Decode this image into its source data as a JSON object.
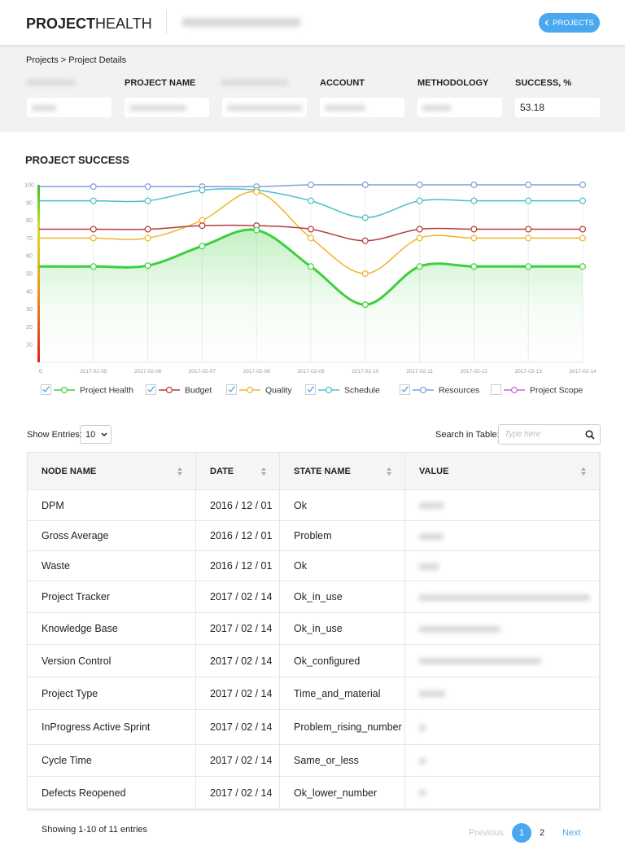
{
  "header": {
    "logo_bold": "PROJECT",
    "logo_light": "HEALTH",
    "button": "PROJECTS"
  },
  "breadcrumb": "Projects > Project Details",
  "fields": [
    {
      "label": "PROJECT NAME"
    },
    {
      "label": "ACCOUNT"
    },
    {
      "label": "METHODOLOGY"
    },
    {
      "label": "SUCCESS, %",
      "value": "53.18"
    }
  ],
  "chart_data": {
    "type": "line",
    "title": "PROJECT SUCCESS",
    "categories": [
      null,
      "2017-02-05",
      "2017-02-06",
      "2017-02-07",
      "2017-02-08",
      "2017-02-09",
      "2017-02-10",
      "2017-02-11",
      "2017-02-12",
      "2017-02-13",
      "2017-02-14"
    ],
    "ylim": [
      0,
      100
    ],
    "yticks": [
      0,
      10,
      20,
      30,
      40,
      50,
      60,
      70,
      80,
      90,
      100
    ],
    "grid": "x",
    "series": [
      {
        "name": "Project Health",
        "color": "#3ecf3e",
        "checked": true,
        "area": true,
        "values": [
          54,
          54,
          54.5,
          65.5,
          74.5,
          54,
          32.5,
          54,
          54,
          54,
          54
        ]
      },
      {
        "name": "Budget",
        "color": "#b23b3b",
        "checked": true,
        "values": [
          75,
          75,
          75,
          77,
          77,
          75,
          68.5,
          75,
          75,
          75,
          75
        ]
      },
      {
        "name": "Quality",
        "color": "#f0b429",
        "checked": true,
        "values": [
          70,
          70,
          70,
          80,
          96,
          70,
          50,
          70,
          70,
          70,
          70
        ]
      },
      {
        "name": "Schedule",
        "color": "#4bbfc6",
        "checked": true,
        "values": [
          91,
          91,
          91,
          97,
          97,
          91,
          81.5,
          91,
          91,
          91,
          91
        ]
      },
      {
        "name": "Resources",
        "color": "#7f9fd9",
        "checked": true,
        "values": [
          99,
          99,
          99,
          99,
          99,
          100,
          100,
          100,
          100,
          100,
          100
        ]
      },
      {
        "name": "Project Scope",
        "color": "#c069d6",
        "checked": false,
        "values": [
          null,
          null,
          null,
          null,
          null,
          null,
          null,
          null,
          null,
          null,
          null
        ]
      }
    ]
  },
  "table": {
    "show": "Show Entries:",
    "entries": "10",
    "search": "Search in Table:",
    "placeholder": "Type here",
    "columns": [
      "NODE NAME",
      "DATE",
      "STATE NAME",
      "VALUE"
    ],
    "rows": [
      [
        "DPM",
        "2016 / 12 / 01",
        "Ok"
      ],
      [
        "Gross Average",
        "2016 / 12 / 01",
        "Problem"
      ],
      [
        "Waste",
        "2016 / 12 / 01",
        "Ok"
      ],
      [
        "Project Tracker",
        "2017 / 02 / 14",
        "Ok_in_use"
      ],
      [
        "Knowledge Base",
        "2017 / 02 / 14",
        "Ok_in_use"
      ],
      [
        "Version Control",
        "2017 / 02 / 14",
        "Ok_configured"
      ],
      [
        "Project Type",
        "2017 / 02 / 14",
        "Time_and_material"
      ],
      [
        "InProgress Active Sprint",
        "2017 / 02 / 14",
        "Problem_rising_number"
      ],
      [
        "Cycle Time",
        "2017 / 02 / 14",
        "Same_or_less"
      ],
      [
        "Defects Reopened",
        "2017 / 02 / 14",
        "Ok_lower_number"
      ]
    ]
  },
  "footer": {
    "info": "Showing 1-10 of 11 entries",
    "prev": "Previous",
    "pages": [
      "1",
      "2"
    ],
    "next": "Next"
  }
}
